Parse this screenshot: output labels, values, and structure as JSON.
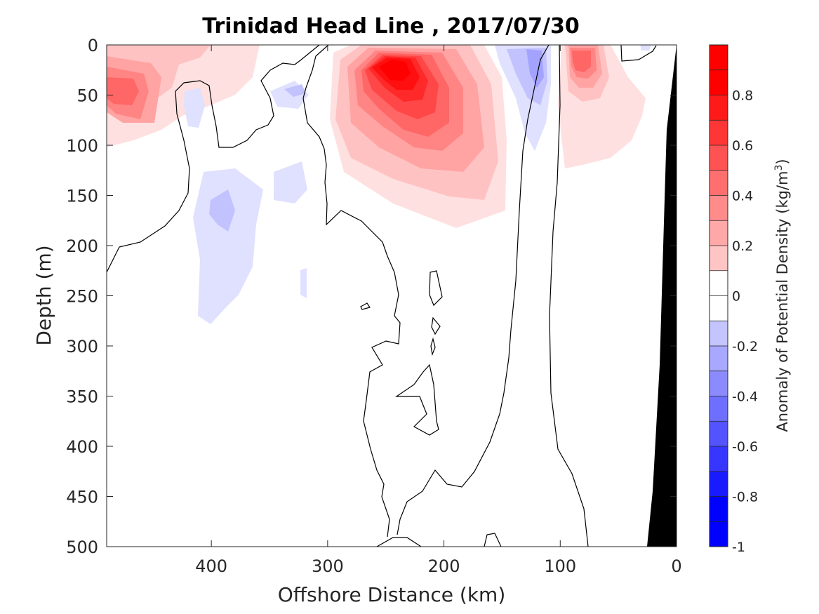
{
  "chart_data": {
    "type": "contour",
    "title": "Trinidad Head Line , 2017/07/30",
    "xlabel": "Offshore Distance (km)",
    "ylabel": "Depth (m)",
    "xlim": [
      490,
      0
    ],
    "ylim": [
      0,
      500
    ],
    "x_reversed": true,
    "y_reversed": true,
    "x_ticks": [
      400,
      300,
      200,
      100,
      0
    ],
    "y_ticks": [
      0,
      50,
      100,
      150,
      200,
      250,
      300,
      350,
      400,
      450,
      500
    ],
    "colorbar": {
      "label": "Anomaly of Potential Density (kg/m",
      "label_sup": "3",
      "label_close": ")",
      "range": [
        -1,
        1
      ],
      "levels": [
        -1,
        -0.9,
        -0.8,
        -0.7,
        -0.6,
        -0.5,
        -0.4,
        -0.3,
        -0.2,
        -0.1,
        0,
        0.1,
        0.2,
        0.3,
        0.4,
        0.5,
        0.6,
        0.7,
        0.8,
        0.9,
        1
      ],
      "tick_labels": [
        "-1",
        "-0.8",
        "-0.6",
        "-0.4",
        "-0.2",
        "0",
        "0.2",
        "0.4",
        "0.6",
        "0.8"
      ],
      "tick_values": [
        -1,
        -0.8,
        -0.6,
        -0.4,
        -0.2,
        0,
        0.2,
        0.4,
        0.6,
        0.8
      ],
      "neg_color": "#0000ff",
      "pos_color": "#ff0000"
    },
    "features": [
      {
        "kind": "positive",
        "peak": 0.95,
        "x_km": 240,
        "depth_m": 20
      },
      {
        "kind": "positive",
        "peak": 0.6,
        "x_km": 470,
        "depth_m": 45
      },
      {
        "kind": "positive",
        "peak": 0.6,
        "x_km": 85,
        "depth_m": 15
      },
      {
        "kind": "negative",
        "peak": -0.35,
        "x_km": 125,
        "depth_m": 20
      },
      {
        "kind": "negative",
        "peak": -0.25,
        "x_km": 390,
        "depth_m": 170
      },
      {
        "kind": "negative",
        "peak": -0.15,
        "x_km": 330,
        "depth_m": 40
      }
    ],
    "land_mask": {
      "color": "#000000",
      "description": "shelf / bottom topography at nearshore end"
    }
  }
}
